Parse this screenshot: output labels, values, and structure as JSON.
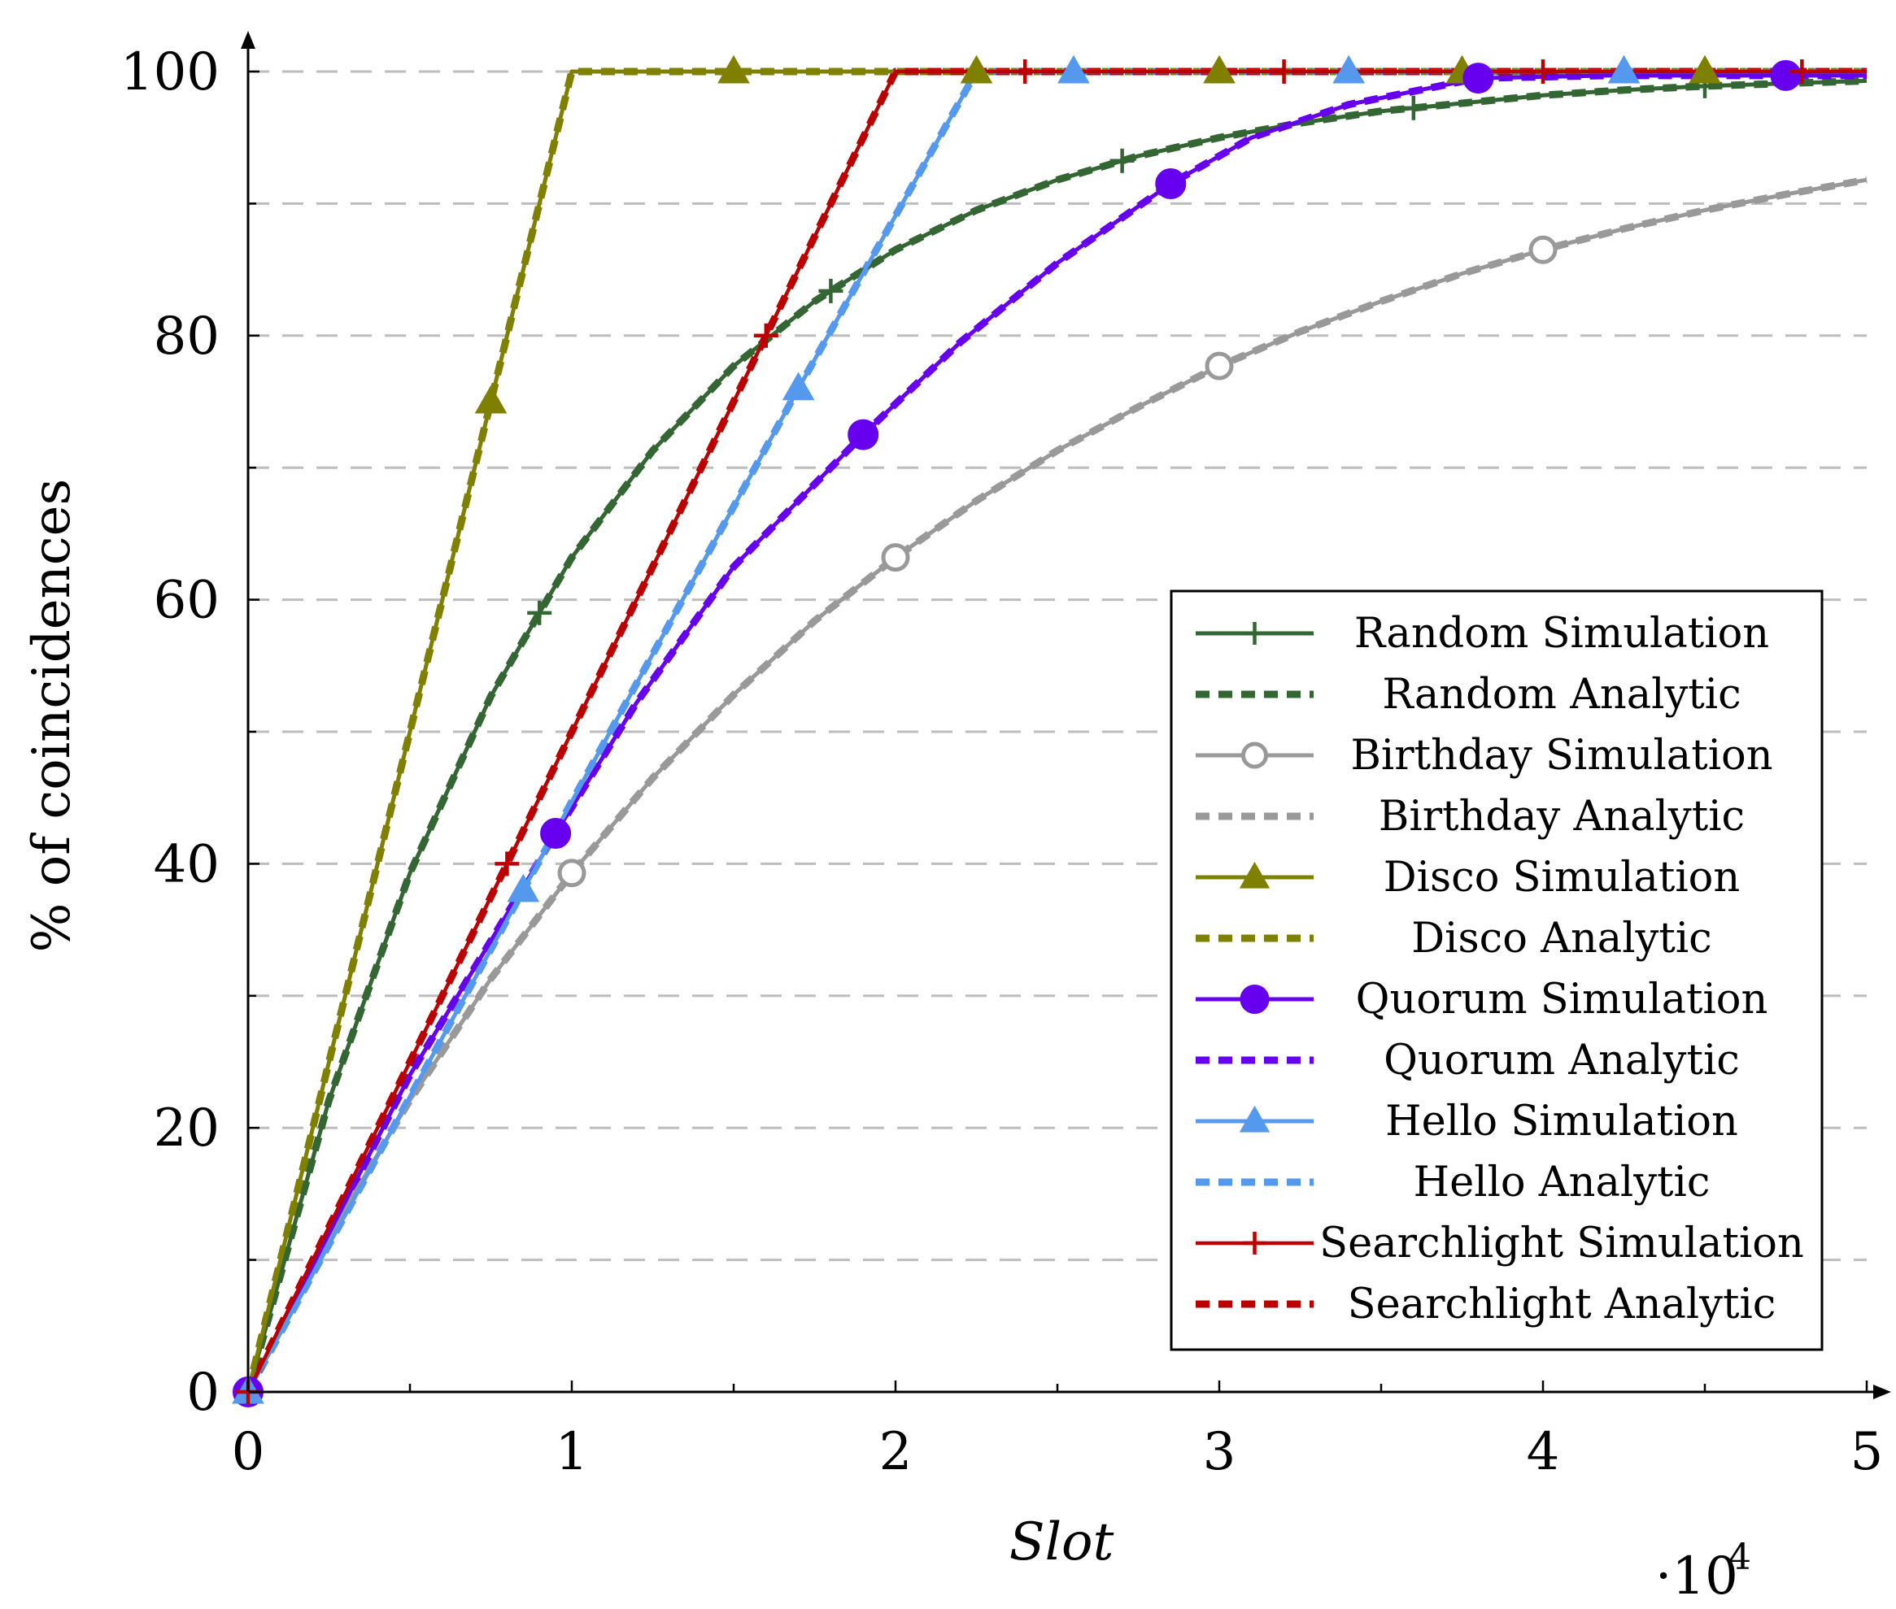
{
  "chart_data": {
    "type": "line",
    "title": "",
    "xlabel": "Slot",
    "ylabel": "% of coincidences",
    "x_multiplier": "·10",
    "x_multiplier_exp": "4",
    "xlim": [
      0,
      5
    ],
    "ylim": [
      0,
      100
    ],
    "xticks": [
      0,
      1,
      2,
      3,
      4,
      5
    ],
    "yticks": [
      0,
      20,
      40,
      60,
      80,
      100
    ],
    "grid": "dashed horizontal every 10",
    "legend_position": "bottom-right",
    "series": [
      {
        "name": "Random Simulation",
        "color": "#336633",
        "style": "solid",
        "marker": "plus",
        "x": [
          0,
          0.25,
          0.5,
          0.75,
          1,
          1.25,
          1.5,
          1.75,
          2,
          2.25,
          2.5,
          2.75,
          3,
          3.25,
          3.5,
          3.75,
          4,
          4.25,
          4.5,
          4.75,
          5
        ],
        "y": [
          0,
          22.1,
          39.3,
          52.7,
          63.2,
          71.3,
          77.7,
          82.6,
          86.5,
          89.5,
          91.8,
          93.6,
          95.0,
          96.1,
          97.0,
          97.6,
          98.2,
          98.6,
          98.9,
          99.1,
          99.3
        ],
        "marker_x": [
          0.9,
          1.8,
          2.7,
          3.6,
          4.5
        ]
      },
      {
        "name": "Random Analytic",
        "color": "#336633",
        "style": "dashed",
        "marker": "none",
        "x": [
          0,
          0.25,
          0.5,
          0.75,
          1,
          1.25,
          1.5,
          1.75,
          2,
          2.25,
          2.5,
          2.75,
          3,
          3.25,
          3.5,
          3.75,
          4,
          4.25,
          4.5,
          4.75,
          5
        ],
        "y": [
          0,
          22.1,
          39.3,
          52.7,
          63.2,
          71.3,
          77.7,
          82.6,
          86.5,
          89.5,
          91.8,
          93.6,
          95.0,
          96.1,
          97.0,
          97.6,
          98.2,
          98.6,
          98.9,
          99.1,
          99.3
        ]
      },
      {
        "name": "Birthday Simulation",
        "color": "#999999",
        "style": "solid",
        "marker": "open-circle",
        "x": [
          0,
          0.25,
          0.5,
          0.75,
          1,
          1.25,
          1.5,
          1.75,
          2,
          2.25,
          2.5,
          2.75,
          3,
          3.25,
          3.5,
          3.75,
          4,
          4.25,
          4.5,
          4.75,
          5
        ],
        "y": [
          0,
          11.8,
          22.1,
          31.3,
          39.3,
          46.5,
          52.8,
          58.4,
          63.2,
          67.5,
          71.3,
          74.6,
          77.7,
          80.3,
          82.6,
          84.7,
          86.5,
          88.1,
          89.5,
          90.7,
          91.8
        ],
        "marker_x": [
          0,
          1,
          2,
          3,
          4
        ]
      },
      {
        "name": "Birthday Analytic",
        "color": "#999999",
        "style": "dashed",
        "marker": "none",
        "x": [
          0,
          0.25,
          0.5,
          0.75,
          1,
          1.25,
          1.5,
          1.75,
          2,
          2.25,
          2.5,
          2.75,
          3,
          3.25,
          3.5,
          3.75,
          4,
          4.25,
          4.5,
          4.75,
          5
        ],
        "y": [
          0,
          11.8,
          22.1,
          31.3,
          39.3,
          46.5,
          52.8,
          58.4,
          63.2,
          67.5,
          71.3,
          74.6,
          77.7,
          80.3,
          82.6,
          84.7,
          86.5,
          88.1,
          89.5,
          90.7,
          91.8
        ]
      },
      {
        "name": "Disco Simulation",
        "color": "#808000",
        "style": "solid",
        "marker": "triangle",
        "x": [
          0,
          1,
          5
        ],
        "y": [
          0,
          100,
          100
        ],
        "marker_x": [
          0.75,
          1.5,
          2.25,
          3,
          3.75,
          4.5
        ]
      },
      {
        "name": "Disco Analytic",
        "color": "#808000",
        "style": "dashed",
        "marker": "none",
        "x": [
          0,
          1,
          5
        ],
        "y": [
          0,
          100,
          100
        ]
      },
      {
        "name": "Quorum Simulation",
        "color": "#6600ee",
        "style": "solid",
        "marker": "filled-circle",
        "x": [
          0,
          0.5,
          0.95,
          1.2,
          1.5,
          1.9,
          2.2,
          2.5,
          2.85,
          3.1,
          3.4,
          3.8,
          4.2,
          5
        ],
        "y": [
          0,
          24,
          42.3,
          52.2,
          62.5,
          72.5,
          79.5,
          85.5,
          91.5,
          95.0,
          97.5,
          99.5,
          99.7,
          99.7
        ],
        "marker_x": [
          0,
          0.95,
          1.9,
          2.85,
          3.8,
          4.75
        ]
      },
      {
        "name": "Quorum Analytic",
        "color": "#6600ee",
        "style": "dashed",
        "marker": "none",
        "x": [
          0,
          0.5,
          0.95,
          1.2,
          1.5,
          1.9,
          2.2,
          2.5,
          2.85,
          3.1,
          3.4,
          3.8,
          4.2,
          5
        ],
        "y": [
          0,
          24,
          42.3,
          52.2,
          62.5,
          72.5,
          79.5,
          85.5,
          91.5,
          95.0,
          97.5,
          99.5,
          99.7,
          99.7
        ]
      },
      {
        "name": "Hello Simulation",
        "color": "#5599ee",
        "style": "solid",
        "marker": "triangle",
        "x": [
          0,
          0.85,
          1.7,
          2.25,
          5
        ],
        "y": [
          0,
          38,
          76,
          100,
          100
        ],
        "marker_x": [
          0,
          0.85,
          1.7,
          2.55,
          3.4,
          4.25
        ]
      },
      {
        "name": "Hello Analytic",
        "color": "#5599ee",
        "style": "dashed",
        "marker": "none",
        "x": [
          0,
          0.85,
          1.7,
          2.25,
          5
        ],
        "y": [
          0,
          38,
          76,
          100,
          100
        ]
      },
      {
        "name": "Searchlight Simulation",
        "color": "#bb0000",
        "style": "solid",
        "marker": "plus",
        "x": [
          0,
          0.8,
          1.6,
          2,
          5
        ],
        "y": [
          0,
          40,
          80,
          100,
          100
        ],
        "marker_x": [
          0,
          0.8,
          1.6,
          2.4,
          3.2,
          4.0,
          4.8
        ]
      },
      {
        "name": "Searchlight Analytic",
        "color": "#bb0000",
        "style": "dashed",
        "marker": "none",
        "x": [
          0,
          0.8,
          1.6,
          2,
          5
        ],
        "y": [
          0,
          40,
          80,
          100,
          100
        ]
      }
    ]
  }
}
